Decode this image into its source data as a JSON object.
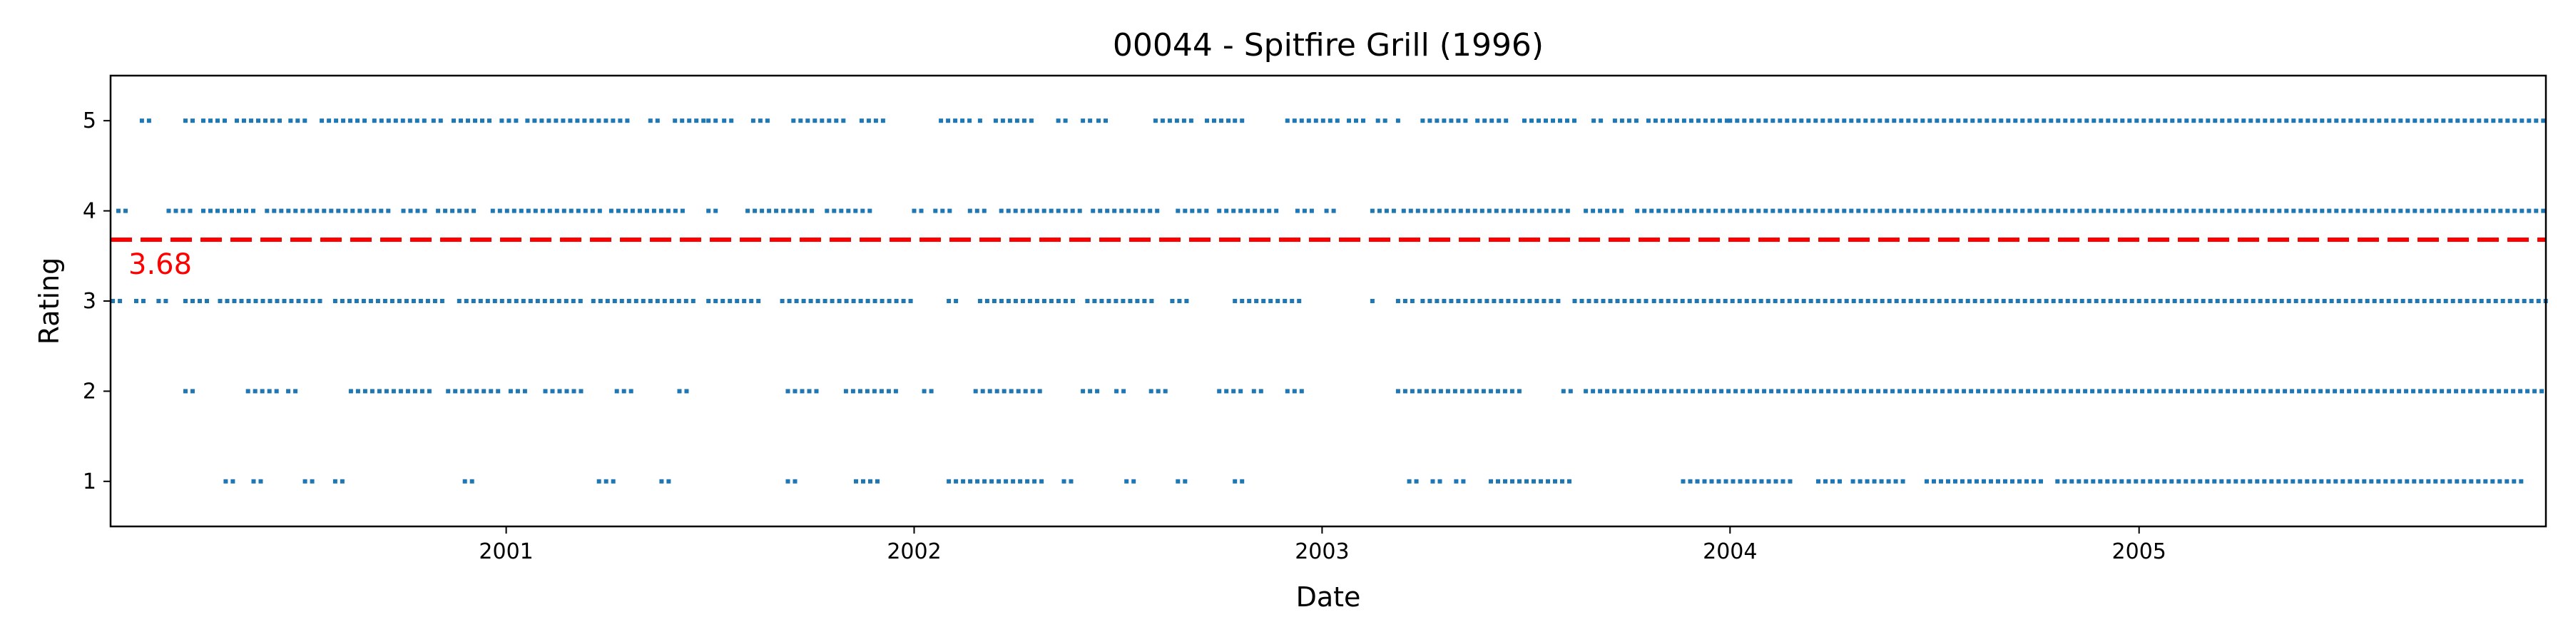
{
  "chart_data": {
    "type": "scatter",
    "title": "00044 - Spitfire Grill (1996)",
    "xlabel": "Date",
    "ylabel": "Rating",
    "x_range": [
      "2000-01-13",
      "2005-12-31"
    ],
    "ylim": [
      0.5,
      5.5
    ],
    "x_ticks": [
      "2001",
      "2002",
      "2003",
      "2004",
      "2005"
    ],
    "x_tick_values": [
      "2001-01-01",
      "2002-01-01",
      "2003-01-01",
      "2004-01-01",
      "2005-01-01"
    ],
    "y_ticks": [
      "1",
      "2",
      "3",
      "4",
      "5"
    ],
    "y_tick_values": [
      1,
      2,
      3,
      4,
      5
    ],
    "grid": false,
    "marker_color": "#1f77b4",
    "mean": {
      "value": 3.68,
      "label": "3.68",
      "color": "#ff0000",
      "style": "dashed"
    },
    "series": [
      {
        "rating": 5,
        "ranges": [
          [
            "2000-02-10",
            "2000-02-18"
          ],
          [
            "2000-03-20",
            "2000-03-28"
          ],
          [
            "2000-04-05",
            "2000-04-25"
          ],
          [
            "2000-05-05",
            "2000-06-15"
          ],
          [
            "2000-06-22",
            "2000-07-10"
          ],
          [
            "2000-07-20",
            "2000-08-30"
          ],
          [
            "2000-09-05",
            "2000-10-20"
          ],
          [
            "2000-10-28",
            "2000-11-05"
          ],
          [
            "2000-11-15",
            "2000-12-20"
          ],
          [
            "2000-12-28",
            "2001-01-10"
          ],
          [
            "2001-01-20",
            "2001-04-25"
          ],
          [
            "2001-05-10",
            "2001-05-20"
          ],
          [
            "2001-06-01",
            "2001-06-30"
          ],
          [
            "2001-07-01",
            "2001-07-08"
          ],
          [
            "2001-07-15",
            "2001-07-22"
          ],
          [
            "2001-08-10",
            "2001-08-25"
          ],
          [
            "2001-09-15",
            "2001-10-31"
          ],
          [
            "2001-11-15",
            "2001-12-05"
          ],
          [
            "2002-01-25",
            "2002-02-25"
          ],
          [
            "2002-03-01",
            "2002-03-05"
          ],
          [
            "2002-03-15",
            "2002-04-20"
          ],
          [
            "2002-05-10",
            "2002-05-20"
          ],
          [
            "2002-06-01",
            "2002-06-10"
          ],
          [
            "2002-06-15",
            "2002-06-25"
          ],
          [
            "2002-08-05",
            "2002-09-10"
          ],
          [
            "2002-09-20",
            "2002-10-10"
          ],
          [
            "2002-10-15",
            "2002-10-25"
          ],
          [
            "2002-12-01",
            "2003-01-15"
          ],
          [
            "2003-01-25",
            "2003-02-10"
          ],
          [
            "2003-02-20",
            "2003-03-01"
          ],
          [
            "2003-03-10",
            "2003-03-15"
          ],
          [
            "2003-04-01",
            "2003-05-10"
          ],
          [
            "2003-05-20",
            "2003-06-20"
          ],
          [
            "2003-07-01",
            "2003-08-20"
          ],
          [
            "2003-09-01",
            "2003-09-10"
          ],
          [
            "2003-09-20",
            "2003-10-15"
          ],
          [
            "2003-10-20",
            "2003-12-31"
          ],
          [
            "2004-01-01",
            "2005-12-31"
          ]
        ]
      },
      {
        "rating": 4,
        "ranges": [
          [
            "2000-01-20",
            "2000-01-28"
          ],
          [
            "2000-03-05",
            "2000-03-25"
          ],
          [
            "2000-04-05",
            "2000-05-20"
          ],
          [
            "2000-06-01",
            "2000-09-20"
          ],
          [
            "2000-10-01",
            "2000-10-25"
          ],
          [
            "2000-11-01",
            "2000-12-05"
          ],
          [
            "2000-12-20",
            "2001-03-30"
          ],
          [
            "2001-04-05",
            "2001-06-10"
          ],
          [
            "2001-07-01",
            "2001-07-10"
          ],
          [
            "2001-08-05",
            "2001-10-05"
          ],
          [
            "2001-10-15",
            "2001-11-25"
          ],
          [
            "2002-01-01",
            "2002-01-10"
          ],
          [
            "2002-01-20",
            "2002-02-05"
          ],
          [
            "2002-02-20",
            "2002-03-10"
          ],
          [
            "2002-03-20",
            "2002-05-30"
          ],
          [
            "2002-06-10",
            "2002-08-10"
          ],
          [
            "2002-08-25",
            "2002-09-20"
          ],
          [
            "2002-10-01",
            "2002-11-25"
          ],
          [
            "2002-12-10",
            "2002-12-28"
          ],
          [
            "2003-01-05",
            "2003-01-15"
          ],
          [
            "2003-02-15",
            "2003-03-10"
          ],
          [
            "2003-03-15",
            "2003-08-15"
          ],
          [
            "2003-08-25",
            "2003-09-30"
          ],
          [
            "2003-10-10",
            "2003-12-31"
          ],
          [
            "2004-01-01",
            "2005-12-31"
          ]
        ]
      },
      {
        "rating": 3,
        "ranges": [
          [
            "2000-01-15",
            "2000-01-25"
          ],
          [
            "2000-02-05",
            "2000-02-15"
          ],
          [
            "2000-02-25",
            "2000-03-05"
          ],
          [
            "2000-03-20",
            "2000-04-10"
          ],
          [
            "2000-04-20",
            "2000-07-20"
          ],
          [
            "2000-08-01",
            "2000-11-10"
          ],
          [
            "2000-11-20",
            "2001-03-10"
          ],
          [
            "2001-03-20",
            "2001-06-20"
          ],
          [
            "2001-07-01",
            "2001-08-15"
          ],
          [
            "2001-09-05",
            "2001-12-31"
          ],
          [
            "2002-02-01",
            "2002-02-10"
          ],
          [
            "2002-03-01",
            "2002-05-25"
          ],
          [
            "2002-06-05",
            "2002-08-05"
          ],
          [
            "2002-08-20",
            "2002-09-05"
          ],
          [
            "2002-10-15",
            "2002-12-15"
          ],
          [
            "2003-02-15",
            "2003-02-20"
          ],
          [
            "2003-03-10",
            "2003-03-25"
          ],
          [
            "2003-04-01",
            "2003-08-05"
          ],
          [
            "2003-08-15",
            "2003-10-20"
          ],
          [
            "2003-10-25",
            "2005-12-31"
          ]
        ]
      },
      {
        "rating": 2,
        "ranges": [
          [
            "2000-03-20",
            "2000-03-27"
          ],
          [
            "2000-05-15",
            "2000-06-10"
          ],
          [
            "2000-06-20",
            "2000-06-30"
          ],
          [
            "2000-08-15",
            "2000-10-30"
          ],
          [
            "2000-11-10",
            "2000-12-25"
          ],
          [
            "2001-01-05",
            "2001-01-20"
          ],
          [
            "2001-02-05",
            "2001-03-10"
          ],
          [
            "2001-04-10",
            "2001-04-25"
          ],
          [
            "2001-06-05",
            "2001-06-15"
          ],
          [
            "2001-09-10",
            "2001-10-10"
          ],
          [
            "2001-11-01",
            "2001-12-20"
          ],
          [
            "2002-01-10",
            "2002-01-20"
          ],
          [
            "2002-02-25",
            "2002-04-25"
          ],
          [
            "2002-06-01",
            "2002-06-20"
          ],
          [
            "2002-07-01",
            "2002-07-10"
          ],
          [
            "2002-08-01",
            "2002-08-15"
          ],
          [
            "2002-10-01",
            "2002-10-25"
          ],
          [
            "2002-11-01",
            "2002-11-10"
          ],
          [
            "2002-12-01",
            "2002-12-15"
          ],
          [
            "2003-03-10",
            "2003-06-30"
          ],
          [
            "2003-08-05",
            "2003-08-15"
          ],
          [
            "2003-08-25",
            "2005-12-31"
          ]
        ]
      },
      {
        "rating": 1,
        "ranges": [
          [
            "2000-04-25",
            "2000-05-02"
          ],
          [
            "2000-05-20",
            "2000-05-27"
          ],
          [
            "2000-07-05",
            "2000-07-12"
          ],
          [
            "2000-08-01",
            "2000-08-12"
          ],
          [
            "2000-11-25",
            "2000-12-02"
          ],
          [
            "2001-03-25",
            "2001-04-10"
          ],
          [
            "2001-05-20",
            "2001-05-27"
          ],
          [
            "2001-09-10",
            "2001-09-17"
          ],
          [
            "2001-11-10",
            "2001-12-05"
          ],
          [
            "2002-02-01",
            "2002-04-25"
          ],
          [
            "2002-05-15",
            "2002-05-22"
          ],
          [
            "2002-07-10",
            "2002-07-20"
          ],
          [
            "2002-08-25",
            "2002-09-01"
          ],
          [
            "2002-10-15",
            "2002-10-22"
          ],
          [
            "2003-03-20",
            "2003-03-30"
          ],
          [
            "2003-04-10",
            "2003-04-20"
          ],
          [
            "2003-05-01",
            "2003-05-10"
          ],
          [
            "2003-06-01",
            "2003-08-15"
          ],
          [
            "2003-11-20",
            "2004-02-25"
          ],
          [
            "2004-03-20",
            "2004-04-10"
          ],
          [
            "2004-04-20",
            "2004-06-10"
          ],
          [
            "2004-06-25",
            "2004-10-10"
          ],
          [
            "2004-10-20",
            "2005-12-10"
          ]
        ]
      }
    ]
  }
}
